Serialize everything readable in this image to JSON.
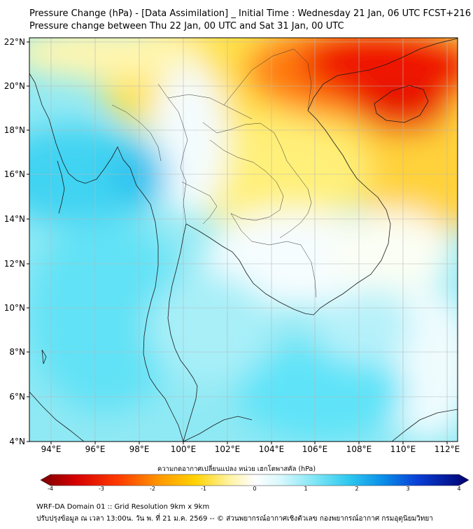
{
  "map": {
    "title_line1": "Pressure Change (hPa) - [Data Assimilation] _ Initial Time : Wednesday 21 Jan, 06 UTC FCST+216",
    "title_line2": "Pressure change between Thu 22 Jan, 00 UTC and Sat 31 Jan, 00 UTC",
    "lon_ticks": [
      "94°E",
      "96°E",
      "98°E",
      "100°E",
      "102°E",
      "104°E",
      "106°E",
      "108°E",
      "110°E",
      "112°E"
    ],
    "lat_ticks": [
      "22°N",
      "20°N",
      "18°N",
      "16°N",
      "14°N",
      "12°N",
      "10°N",
      "8°N",
      "6°N",
      "4°N"
    ],
    "extent": {
      "lon_min": 93,
      "lon_max": 112.5,
      "lat_min": 4,
      "lat_max": 22.2
    }
  },
  "colorbar": {
    "label": "ความกดอากาศเปลี่ยนแปลง หน่วย เฮกโตพาสคัล (hPa)",
    "min": -4,
    "max": 4,
    "ticks": [
      "-4",
      "-3",
      "-2",
      "-1",
      "0",
      "1",
      "2",
      "3",
      "4"
    ]
  },
  "footer": {
    "line1": "WRF-DA Domain 01 :: Grid Resolution 9km x 9km",
    "line2": "ปรับปรุงข้อมูล ณ เวลา 13:00น. วัน พ. ที่ 21 ม.ค. 2569 -- © ส่วนพยากรณ์อากาศเชิงตัวเลข กองพยากรณ์อากาศ กรมอุตุนิยมวิทยา"
  },
  "colors": {
    "strong_negative": "#d40000",
    "weak_negative": "#ffe000",
    "neutral": "#ffffff",
    "weak_positive": "#7fe6f5",
    "strong_positive": "#000080"
  }
}
